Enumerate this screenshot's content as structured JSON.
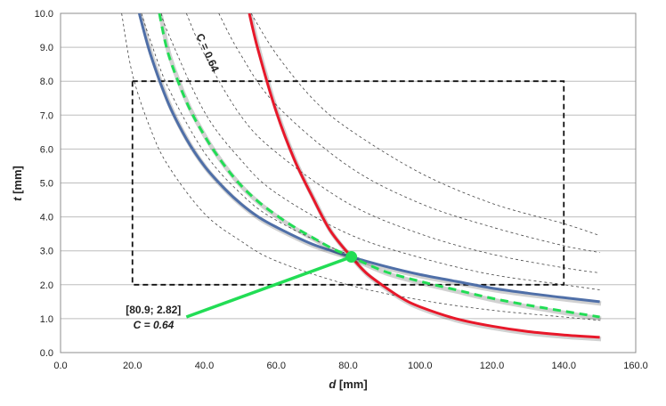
{
  "chart_data": {
    "type": "line",
    "xlabel_var": "d",
    "xlabel_unit": " [mm]",
    "ylabel_var": "t",
    "ylabel_unit": " [mm]",
    "xlim": [
      0,
      160
    ],
    "ylim": [
      0,
      10
    ],
    "x_ticks": [
      0,
      20,
      40,
      60,
      80,
      100,
      120,
      140,
      160
    ],
    "y_ticks": [
      0,
      1,
      2,
      3,
      4,
      5,
      6,
      7,
      8,
      9,
      10
    ],
    "x_tick_labels": [
      "0.0",
      "20.0",
      "40.0",
      "60.0",
      "80.0",
      "100.0",
      "120.0",
      "140.0",
      "160.0"
    ],
    "y_tick_labels": [
      "0.0",
      "1.0",
      "2.0",
      "3.0",
      "4.0",
      "5.0",
      "6.0",
      "7.0",
      "8.0",
      "9.0",
      "10.0"
    ],
    "grid": "horizontal",
    "series": [
      {
        "style": "solid-blue",
        "color": "#4f6fa8",
        "points": [
          [
            21.9,
            10
          ],
          [
            25,
            8.8
          ],
          [
            30,
            7.35
          ],
          [
            35,
            6.3
          ],
          [
            40,
            5.5
          ],
          [
            45,
            4.9
          ],
          [
            50,
            4.4
          ],
          [
            55,
            4.0
          ],
          [
            60,
            3.7
          ],
          [
            70,
            3.2
          ],
          [
            80.9,
            2.82
          ],
          [
            90,
            2.55
          ],
          [
            100,
            2.3
          ],
          [
            110,
            2.1
          ],
          [
            120,
            1.9
          ],
          [
            130,
            1.75
          ],
          [
            140,
            1.62
          ],
          [
            150,
            1.5
          ]
        ]
      },
      {
        "style": "solid-red",
        "color": "#e8182a",
        "points": [
          [
            52.5,
            10
          ],
          [
            55,
            8.9
          ],
          [
            60,
            7.1
          ],
          [
            65,
            5.7
          ],
          [
            70,
            4.6
          ],
          [
            75,
            3.6
          ],
          [
            80.9,
            2.82
          ],
          [
            85,
            2.35
          ],
          [
            90,
            1.95
          ],
          [
            95,
            1.6
          ],
          [
            100,
            1.35
          ],
          [
            110,
            1.0
          ],
          [
            120,
            0.78
          ],
          [
            130,
            0.62
          ],
          [
            140,
            0.52
          ],
          [
            150,
            0.45
          ]
        ]
      },
      {
        "style": "dashed-green",
        "color": "#22dd55",
        "points": [
          [
            27.5,
            10
          ],
          [
            30,
            8.8
          ],
          [
            35,
            7.4
          ],
          [
            40,
            6.4
          ],
          [
            45,
            5.6
          ],
          [
            50,
            4.95
          ],
          [
            55,
            4.45
          ],
          [
            60,
            4.05
          ],
          [
            65,
            3.7
          ],
          [
            70,
            3.4
          ],
          [
            75,
            3.1
          ],
          [
            80.9,
            2.82
          ],
          [
            90,
            2.4
          ],
          [
            100,
            2.1
          ],
          [
            110,
            1.85
          ],
          [
            120,
            1.6
          ],
          [
            130,
            1.4
          ],
          [
            140,
            1.22
          ],
          [
            150,
            1.05
          ]
        ]
      }
    ],
    "iso_curves": [
      {
        "points": [
          [
            17.0,
            10
          ],
          [
            20,
            8.2
          ],
          [
            25,
            6.6
          ],
          [
            30,
            5.5
          ],
          [
            40,
            4.1
          ],
          [
            50,
            3.3
          ],
          [
            60,
            2.7
          ],
          [
            80,
            2.0
          ],
          [
            100,
            1.55
          ],
          [
            120,
            1.25
          ],
          [
            140,
            1.05
          ],
          [
            150,
            0.95
          ]
        ]
      },
      {
        "points": [
          [
            22.5,
            10
          ],
          [
            25,
            9.2
          ],
          [
            30,
            7.8
          ],
          [
            40,
            5.9
          ],
          [
            50,
            4.7
          ],
          [
            60,
            3.9
          ],
          [
            80,
            2.9
          ],
          [
            100,
            2.3
          ],
          [
            120,
            1.9
          ],
          [
            140,
            1.6
          ],
          [
            150,
            1.5
          ]
        ]
      },
      {
        "points": [
          [
            28.0,
            10
          ],
          [
            30,
            9.4
          ],
          [
            40,
            7.1
          ],
          [
            50,
            5.7
          ],
          [
            60,
            4.7
          ],
          [
            80,
            3.5
          ],
          [
            100,
            2.8
          ],
          [
            120,
            2.3
          ],
          [
            140,
            2.0
          ],
          [
            150,
            1.85
          ]
        ]
      },
      {
        "points": [
          [
            35.0,
            10
          ],
          [
            40,
            8.8
          ],
          [
            50,
            7.0
          ],
          [
            60,
            5.9
          ],
          [
            80,
            4.4
          ],
          [
            100,
            3.5
          ],
          [
            120,
            2.9
          ],
          [
            140,
            2.5
          ],
          [
            150,
            2.35
          ]
        ]
      },
      {
        "points": [
          [
            44.0,
            10
          ],
          [
            50,
            8.8
          ],
          [
            60,
            7.3
          ],
          [
            80,
            5.5
          ],
          [
            100,
            4.4
          ],
          [
            120,
            3.7
          ],
          [
            140,
            3.15
          ],
          [
            150,
            2.95
          ]
        ]
      },
      {
        "points": [
          [
            53.0,
            10
          ],
          [
            60,
            8.8
          ],
          [
            70,
            7.5
          ],
          [
            80,
            6.6
          ],
          [
            100,
            5.3
          ],
          [
            120,
            4.4
          ],
          [
            140,
            3.8
          ],
          [
            150,
            3.45
          ]
        ]
      }
    ],
    "design_box": {
      "x": [
        20,
        140
      ],
      "y": [
        2,
        8
      ]
    },
    "intersection": {
      "x": 80.9,
      "y": 2.82,
      "color": "#22dd55"
    },
    "annotation": {
      "coord_label": "[80.9; 2.82]",
      "c_label": "C = 0.64",
      "anchor": [
        35,
        1.05
      ]
    },
    "curve_label": {
      "text": "C = 0.64",
      "position": [
        40,
        8.8
      ]
    }
  }
}
